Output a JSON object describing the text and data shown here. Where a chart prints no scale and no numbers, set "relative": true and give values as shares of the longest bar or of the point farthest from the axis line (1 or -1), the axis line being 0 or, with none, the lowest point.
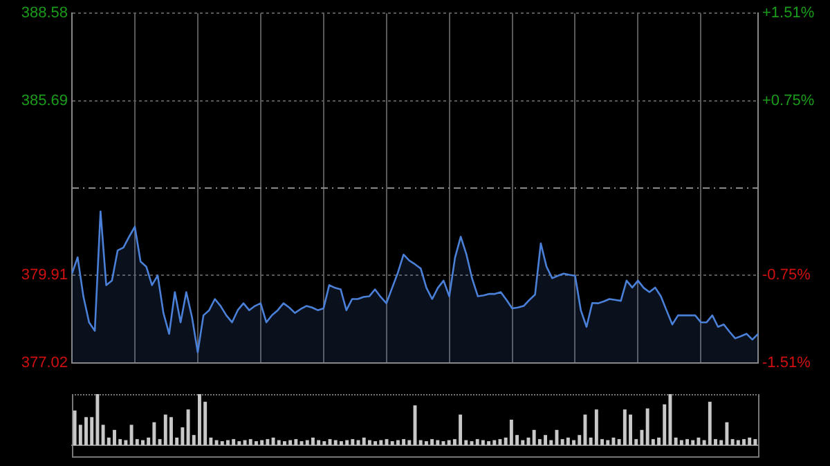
{
  "chart_data": [
    {
      "type": "area",
      "categories": [
        null,
        null,
        null,
        null,
        null,
        null,
        null,
        null,
        null,
        null,
        null,
        null,
        null,
        null,
        null,
        null,
        null,
        null,
        null,
        null,
        null,
        null,
        null,
        null,
        null,
        null,
        null,
        null,
        null,
        null,
        null,
        null,
        null,
        null,
        null,
        null,
        null,
        null,
        null,
        null,
        null,
        null,
        null,
        null,
        null,
        null,
        null,
        null,
        null,
        null,
        null,
        null,
        null,
        null,
        null,
        null,
        null,
        null,
        null,
        null,
        null,
        null,
        null,
        null,
        null,
        null,
        null,
        null,
        null,
        null,
        null,
        null,
        null,
        null,
        null,
        null,
        null,
        null,
        null,
        null,
        null,
        null,
        null,
        null,
        null,
        null,
        null,
        null,
        null,
        null,
        null,
        null,
        null,
        null,
        null,
        null,
        null,
        null,
        null,
        null,
        null,
        null,
        null,
        null,
        null,
        null,
        null,
        null,
        null,
        null,
        null,
        null,
        null,
        null,
        null,
        null,
        null,
        null,
        null,
        null,
        null
      ],
      "series": [
        {
          "color": "#4a80d8",
          "values": [
            379.97,
            380.51,
            379.22,
            378.36,
            378.08,
            382.03,
            379.59,
            379.74,
            380.74,
            380.83,
            381.19,
            381.52,
            380.37,
            380.2,
            379.59,
            379.91,
            378.67,
            377.98,
            379.36,
            378.36,
            379.36,
            378.53,
            377.37,
            378.59,
            378.76,
            379.13,
            378.9,
            378.59,
            378.36,
            378.76,
            378.99,
            378.76,
            378.9,
            378.99,
            378.36,
            378.6,
            378.76,
            378.99,
            378.85,
            378.67,
            378.8,
            378.9,
            378.85,
            378.76,
            378.82,
            379.59,
            379.5,
            379.45,
            378.76,
            379.13,
            379.13,
            379.2,
            379.22,
            379.45,
            379.2,
            378.99,
            379.5,
            380.0,
            380.6,
            380.4,
            380.28,
            380.14,
            379.5,
            379.13,
            379.5,
            379.74,
            379.22,
            380.5,
            381.19,
            380.6,
            379.8,
            379.22,
            379.25,
            379.3,
            379.3,
            379.36,
            379.1,
            378.82,
            378.85,
            378.9,
            379.1,
            379.28,
            380.97,
            380.2,
            379.82,
            379.9,
            379.97,
            379.93,
            379.9,
            378.76,
            378.21,
            379.0,
            378.99,
            379.05,
            379.13,
            379.1,
            379.07,
            379.74,
            379.51,
            379.74,
            379.5,
            379.36,
            379.51,
            379.22,
            378.75,
            378.29,
            378.59,
            378.59,
            378.59,
            378.59,
            378.36,
            378.36,
            378.59,
            378.21,
            378.29,
            378.05,
            377.83,
            377.9,
            377.98,
            377.79,
            377.98
          ]
        }
      ],
      "ylim": [
        377.02,
        388.58
      ],
      "yticks": [
        377.02,
        379.91,
        385.69,
        388.58
      ],
      "y2lim": [
        -1.51,
        1.51
      ],
      "y2ticks": [
        {
          "value": -1.51,
          "label": "-1.51%"
        },
        {
          "value": -0.75,
          "label": "-0.75%"
        },
        {
          "value": 0.75,
          "label": "+0.75%"
        },
        {
          "value": 1.51,
          "label": "+1.51%"
        }
      ],
      "ref_lines": [
        {
          "axis": "y",
          "value": 382.8,
          "color": "#8a8a8a",
          "line_style": "dashed"
        }
      ],
      "grid": true
    },
    {
      "type": "bar",
      "relative": true,
      "color": "#c8c8c8",
      "categories": [
        null,
        null,
        null,
        null,
        null,
        null,
        null,
        null,
        null,
        null,
        null,
        null,
        null,
        null,
        null,
        null,
        null,
        null,
        null,
        null,
        null,
        null,
        null,
        null,
        null,
        null,
        null,
        null,
        null,
        null,
        null,
        null,
        null,
        null,
        null,
        null,
        null,
        null,
        null,
        null,
        null,
        null,
        null,
        null,
        null,
        null,
        null,
        null,
        null,
        null,
        null,
        null,
        null,
        null,
        null,
        null,
        null,
        null,
        null,
        null,
        null,
        null,
        null,
        null,
        null,
        null,
        null,
        null,
        null,
        null,
        null,
        null,
        null,
        null,
        null,
        null,
        null,
        null,
        null,
        null,
        null,
        null,
        null,
        null,
        null,
        null,
        null,
        null,
        null,
        null,
        null,
        null,
        null,
        null,
        null,
        null,
        null,
        null,
        null,
        null,
        null,
        null,
        null,
        null,
        null,
        null,
        null,
        null,
        null,
        null,
        null,
        null,
        null,
        null,
        null,
        null,
        null,
        null,
        null,
        null,
        null
      ],
      "values": [
        0.68,
        0.4,
        0.55,
        0.55,
        1,
        0.4,
        0.15,
        0.3,
        0.12,
        0.1,
        0.4,
        0.12,
        0.1,
        0.15,
        0.45,
        0.12,
        0.6,
        0.55,
        0.15,
        0.35,
        0.7,
        0.2,
        1,
        0.85,
        0.15,
        0.1,
        0.08,
        0.1,
        0.12,
        0.08,
        0.1,
        0.12,
        0.08,
        0.1,
        0.12,
        0.15,
        0.1,
        0.08,
        0.1,
        0.12,
        0.08,
        0.1,
        0.15,
        0.1,
        0.08,
        0.12,
        0.1,
        0.08,
        0.1,
        0.12,
        0.1,
        0.15,
        0.1,
        0.08,
        0.1,
        0.12,
        0.08,
        0.1,
        0.12,
        0.1,
        0.78,
        0.1,
        0.08,
        0.12,
        0.1,
        0.08,
        0.1,
        0.12,
        0.6,
        0.1,
        0.08,
        0.12,
        0.1,
        0.08,
        0.1,
        0.12,
        0.15,
        0.5,
        0.2,
        0.1,
        0.15,
        0.3,
        0.12,
        0.2,
        0.1,
        0.3,
        0.12,
        0.15,
        0.1,
        0.2,
        0.6,
        0.15,
        0.7,
        0.12,
        0.1,
        0.15,
        0.12,
        0.7,
        0.6,
        0.12,
        0.3,
        0.72,
        0.12,
        0.15,
        0.8,
        1,
        0.15,
        0.1,
        0.12,
        0.1,
        0.15,
        0.1,
        0.85,
        0.12,
        0.1,
        0.45,
        0.12,
        0.1,
        0.12,
        0.15,
        0.12
      ]
    }
  ]
}
